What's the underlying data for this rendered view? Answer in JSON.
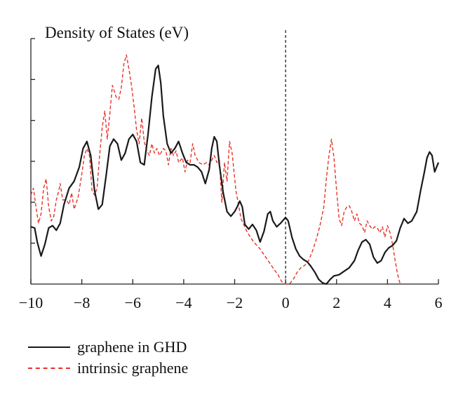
{
  "chart_data": {
    "type": "line",
    "ylabel": "Density of States (eV)",
    "xlabel": "",
    "xlim": [
      -10,
      6
    ],
    "ylim": [
      0,
      1
    ],
    "x_ticks": [
      -10,
      -8,
      -6,
      -4,
      -2,
      0,
      2,
      4,
      6
    ],
    "x_tick_labels": [
      "−10",
      "−8",
      "−6",
      "−4",
      "−2",
      "0",
      "2",
      "4",
      "6"
    ],
    "y_ticks": [
      0.175,
      0.35,
      0.525,
      0.7,
      0.875,
      1.05
    ],
    "fermi_level": 0,
    "grid": false,
    "legend_position": "bottom-left",
    "series": [
      {
        "name": "graphene in GHD",
        "color": "#1a1a1a",
        "style": "solid",
        "points": [
          [
            -10,
            0.245
          ],
          [
            -9.85,
            0.24
          ],
          [
            -9.75,
            0.18
          ],
          [
            -9.6,
            0.12
          ],
          [
            -9.45,
            0.17
          ],
          [
            -9.3,
            0.24
          ],
          [
            -9.15,
            0.25
          ],
          [
            -9,
            0.23
          ],
          [
            -8.85,
            0.26
          ],
          [
            -8.7,
            0.34
          ],
          [
            -8.5,
            0.41
          ],
          [
            -8.3,
            0.44
          ],
          [
            -8.1,
            0.5
          ],
          [
            -7.95,
            0.58
          ],
          [
            -7.8,
            0.61
          ],
          [
            -7.65,
            0.55
          ],
          [
            -7.5,
            0.4
          ],
          [
            -7.35,
            0.32
          ],
          [
            -7.2,
            0.34
          ],
          [
            -7.05,
            0.46
          ],
          [
            -6.9,
            0.59
          ],
          [
            -6.75,
            0.62
          ],
          [
            -6.6,
            0.6
          ],
          [
            -6.45,
            0.53
          ],
          [
            -6.3,
            0.56
          ],
          [
            -6.15,
            0.62
          ],
          [
            -6,
            0.64
          ],
          [
            -5.85,
            0.61
          ],
          [
            -5.7,
            0.52
          ],
          [
            -5.55,
            0.51
          ],
          [
            -5.4,
            0.64
          ],
          [
            -5.25,
            0.8
          ],
          [
            -5.1,
            0.92
          ],
          [
            -5,
            0.935
          ],
          [
            -4.9,
            0.86
          ],
          [
            -4.8,
            0.72
          ],
          [
            -4.65,
            0.6
          ],
          [
            -4.5,
            0.56
          ],
          [
            -4.35,
            0.58
          ],
          [
            -4.2,
            0.61
          ],
          [
            -4.05,
            0.56
          ],
          [
            -3.9,
            0.52
          ],
          [
            -3.75,
            0.51
          ],
          [
            -3.6,
            0.51
          ],
          [
            -3.45,
            0.5
          ],
          [
            -3.3,
            0.48
          ],
          [
            -3.15,
            0.43
          ],
          [
            -3,
            0.49
          ],
          [
            -2.9,
            0.58
          ],
          [
            -2.8,
            0.63
          ],
          [
            -2.7,
            0.61
          ],
          [
            -2.6,
            0.51
          ],
          [
            -2.45,
            0.39
          ],
          [
            -2.3,
            0.31
          ],
          [
            -2.15,
            0.29
          ],
          [
            -2,
            0.31
          ],
          [
            -1.9,
            0.33
          ],
          [
            -1.8,
            0.355
          ],
          [
            -1.7,
            0.33
          ],
          [
            -1.6,
            0.255
          ],
          [
            -1.45,
            0.235
          ],
          [
            -1.3,
            0.255
          ],
          [
            -1.15,
            0.23
          ],
          [
            -1,
            0.18
          ],
          [
            -0.85,
            0.225
          ],
          [
            -0.7,
            0.3
          ],
          [
            -0.6,
            0.31
          ],
          [
            -0.5,
            0.27
          ],
          [
            -0.35,
            0.245
          ],
          [
            -0.2,
            0.26
          ],
          [
            0,
            0.285
          ],
          [
            0.1,
            0.27
          ],
          [
            0.25,
            0.2
          ],
          [
            0.4,
            0.15
          ],
          [
            0.55,
            0.12
          ],
          [
            0.7,
            0.105
          ],
          [
            0.85,
            0.095
          ],
          [
            1,
            0.075
          ],
          [
            1.15,
            0.05
          ],
          [
            1.3,
            0.02
          ],
          [
            1.45,
            0.005
          ],
          [
            1.6,
            0
          ],
          [
            1.75,
            0.02
          ],
          [
            1.9,
            0.035
          ],
          [
            2.1,
            0.04
          ],
          [
            2.3,
            0.055
          ],
          [
            2.5,
            0.07
          ],
          [
            2.7,
            0.1
          ],
          [
            2.85,
            0.145
          ],
          [
            3,
            0.18
          ],
          [
            3.15,
            0.19
          ],
          [
            3.3,
            0.17
          ],
          [
            3.45,
            0.115
          ],
          [
            3.6,
            0.09
          ],
          [
            3.75,
            0.1
          ],
          [
            3.9,
            0.135
          ],
          [
            4.05,
            0.155
          ],
          [
            4.2,
            0.165
          ],
          [
            4.35,
            0.185
          ],
          [
            4.5,
            0.24
          ],
          [
            4.65,
            0.28
          ],
          [
            4.8,
            0.26
          ],
          [
            4.95,
            0.27
          ],
          [
            5.15,
            0.31
          ],
          [
            5.3,
            0.4
          ],
          [
            5.45,
            0.48
          ],
          [
            5.55,
            0.54
          ],
          [
            5.65,
            0.565
          ],
          [
            5.75,
            0.55
          ],
          [
            5.85,
            0.48
          ],
          [
            6,
            0.52
          ]
        ]
      },
      {
        "name": "intrinsic graphene",
        "color": "#e8322a",
        "style": "dashed",
        "points": [
          [
            -10,
            0.38
          ],
          [
            -9.9,
            0.41
          ],
          [
            -9.8,
            0.33
          ],
          [
            -9.7,
            0.26
          ],
          [
            -9.6,
            0.3
          ],
          [
            -9.5,
            0.41
          ],
          [
            -9.4,
            0.45
          ],
          [
            -9.3,
            0.33
          ],
          [
            -9.2,
            0.27
          ],
          [
            -9.1,
            0.29
          ],
          [
            -9,
            0.36
          ],
          [
            -8.9,
            0.4
          ],
          [
            -8.85,
            0.43
          ],
          [
            -8.75,
            0.36
          ],
          [
            -8.6,
            0.36
          ],
          [
            -8.5,
            0.34
          ],
          [
            -8.4,
            0.39
          ],
          [
            -8.3,
            0.32
          ],
          [
            -8.15,
            0.37
          ],
          [
            -8,
            0.47
          ],
          [
            -7.9,
            0.55
          ],
          [
            -7.8,
            0.58
          ],
          [
            -7.7,
            0.55
          ],
          [
            -7.6,
            0.4
          ],
          [
            -7.5,
            0.38
          ],
          [
            -7.4,
            0.41
          ],
          [
            -7.3,
            0.55
          ],
          [
            -7.2,
            0.67
          ],
          [
            -7.1,
            0.74
          ],
          [
            -7,
            0.62
          ],
          [
            -6.9,
            0.73
          ],
          [
            -6.8,
            0.85
          ],
          [
            -6.65,
            0.8
          ],
          [
            -6.55,
            0.79
          ],
          [
            -6.45,
            0.84
          ],
          [
            -6.35,
            0.94
          ],
          [
            -6.25,
            0.98
          ],
          [
            -6.15,
            0.92
          ],
          [
            -6.05,
            0.85
          ],
          [
            -5.95,
            0.76
          ],
          [
            -5.85,
            0.66
          ],
          [
            -5.75,
            0.6
          ],
          [
            -5.65,
            0.71
          ],
          [
            -5.55,
            0.61
          ],
          [
            -5.45,
            0.57
          ],
          [
            -5.35,
            0.55
          ],
          [
            -5.25,
            0.6
          ],
          [
            -5.15,
            0.56
          ],
          [
            -5.05,
            0.58
          ],
          [
            -4.95,
            0.55
          ],
          [
            -4.8,
            0.58
          ],
          [
            -4.7,
            0.57
          ],
          [
            -4.6,
            0.51
          ],
          [
            -4.5,
            0.58
          ],
          [
            -4.4,
            0.55
          ],
          [
            -4.3,
            0.57
          ],
          [
            -4.2,
            0.52
          ],
          [
            -4.05,
            0.54
          ],
          [
            -3.95,
            0.48
          ],
          [
            -3.85,
            0.53
          ],
          [
            -3.75,
            0.52
          ],
          [
            -3.65,
            0.6
          ],
          [
            -3.55,
            0.55
          ],
          [
            -3.4,
            0.52
          ],
          [
            -3.25,
            0.51
          ],
          [
            -3.1,
            0.52
          ],
          [
            -3,
            0.51
          ],
          [
            -2.9,
            0.53
          ],
          [
            -2.8,
            0.55
          ],
          [
            -2.7,
            0.52
          ],
          [
            -2.6,
            0.53
          ],
          [
            -2.5,
            0.35
          ],
          [
            -2.4,
            0.52
          ],
          [
            -2.3,
            0.44
          ],
          [
            -2.2,
            0.61
          ],
          [
            -2.1,
            0.56
          ],
          [
            -1.95,
            0.4
          ],
          [
            -1.75,
            0.28
          ],
          [
            -1.5,
            0.22
          ],
          [
            -1.25,
            0.18
          ],
          [
            -1,
            0.15
          ],
          [
            -0.75,
            0.11
          ],
          [
            -0.5,
            0.07
          ],
          [
            -0.3,
            0.04
          ],
          [
            -0.15,
            0.01
          ],
          [
            0,
            0.0
          ],
          [
            0.15,
            0.0
          ],
          [
            0.3,
            0.02
          ],
          [
            0.45,
            0.05
          ],
          [
            0.6,
            0.07
          ],
          [
            0.75,
            0.08
          ],
          [
            0.9,
            0.1
          ],
          [
            1.05,
            0.14
          ],
          [
            1.2,
            0.19
          ],
          [
            1.35,
            0.25
          ],
          [
            1.5,
            0.33
          ],
          [
            1.6,
            0.45
          ],
          [
            1.7,
            0.55
          ],
          [
            1.8,
            0.62
          ],
          [
            1.9,
            0.54
          ],
          [
            2,
            0.4
          ],
          [
            2.1,
            0.28
          ],
          [
            2.2,
            0.25
          ],
          [
            2.3,
            0.31
          ],
          [
            2.4,
            0.33
          ],
          [
            2.5,
            0.335
          ],
          [
            2.6,
            0.31
          ],
          [
            2.7,
            0.27
          ],
          [
            2.8,
            0.3
          ],
          [
            2.9,
            0.26
          ],
          [
            3,
            0.25
          ],
          [
            3.1,
            0.22
          ],
          [
            3.2,
            0.27
          ],
          [
            3.3,
            0.25
          ],
          [
            3.4,
            0.235
          ],
          [
            3.5,
            0.245
          ],
          [
            3.6,
            0.24
          ],
          [
            3.7,
            0.22
          ],
          [
            3.8,
            0.245
          ],
          [
            3.9,
            0.2
          ],
          [
            4,
            0.25
          ],
          [
            4.1,
            0.22
          ],
          [
            4.2,
            0.17
          ],
          [
            4.3,
            0.1
          ],
          [
            4.4,
            0.04
          ],
          [
            4.5,
            0.0
          ],
          [
            4.55,
            0.0
          ]
        ]
      }
    ]
  },
  "legend": {
    "items": [
      {
        "label": "graphene in GHD"
      },
      {
        "label": "intrinsic graphene"
      }
    ]
  }
}
